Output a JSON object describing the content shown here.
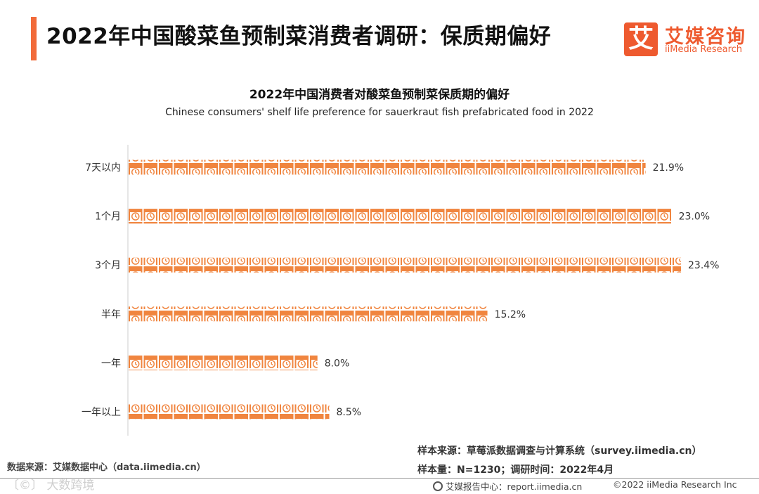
{
  "header": {
    "title": "2022年中国酸菜鱼预制菜消费者调研：保质期偏好",
    "accent_color": "#f26b3a"
  },
  "logo": {
    "mark": "艾",
    "name_cn": "艾媒咨询",
    "name_en": "iiMedia Research",
    "color": "#ee5a2f"
  },
  "chart_data": {
    "type": "bar",
    "orientation": "horizontal",
    "title": "2022年中国消费者对酸菜鱼预制菜保质期的偏好",
    "subtitle": "Chinese consumers' shelf life preference for sauerkraut fish prefabricated food in 2022",
    "categories": [
      "7天以内",
      "1个月",
      "3个月",
      "半年",
      "一年",
      "一年以上"
    ],
    "values": [
      21.9,
      23.0,
      23.4,
      15.2,
      8.0,
      8.5
    ],
    "value_labels": [
      "21.9%",
      "23.0%",
      "23.4%",
      "15.2%",
      "8.0%",
      "8.5%"
    ],
    "unit": "%",
    "bar_color": "#f0853f",
    "bar_style": "pictogram-clock",
    "xlim": [
      0,
      23.4
    ],
    "grid": false,
    "legend": "none"
  },
  "footer": {
    "source": "数据来源：艾媒数据中心（data.iimedia.cn）",
    "sample_source": "样本来源：草莓派数据调查与计算系统（survey.iimedia.cn）",
    "sample_info": "样本量：N=1230；调研时间：2022年4月",
    "watermark": "〔©〕 大数跨境",
    "report_center": "艾媒报告中心：report.iimedia.cn",
    "copyright": "©2022 iiMedia Research Inc"
  }
}
